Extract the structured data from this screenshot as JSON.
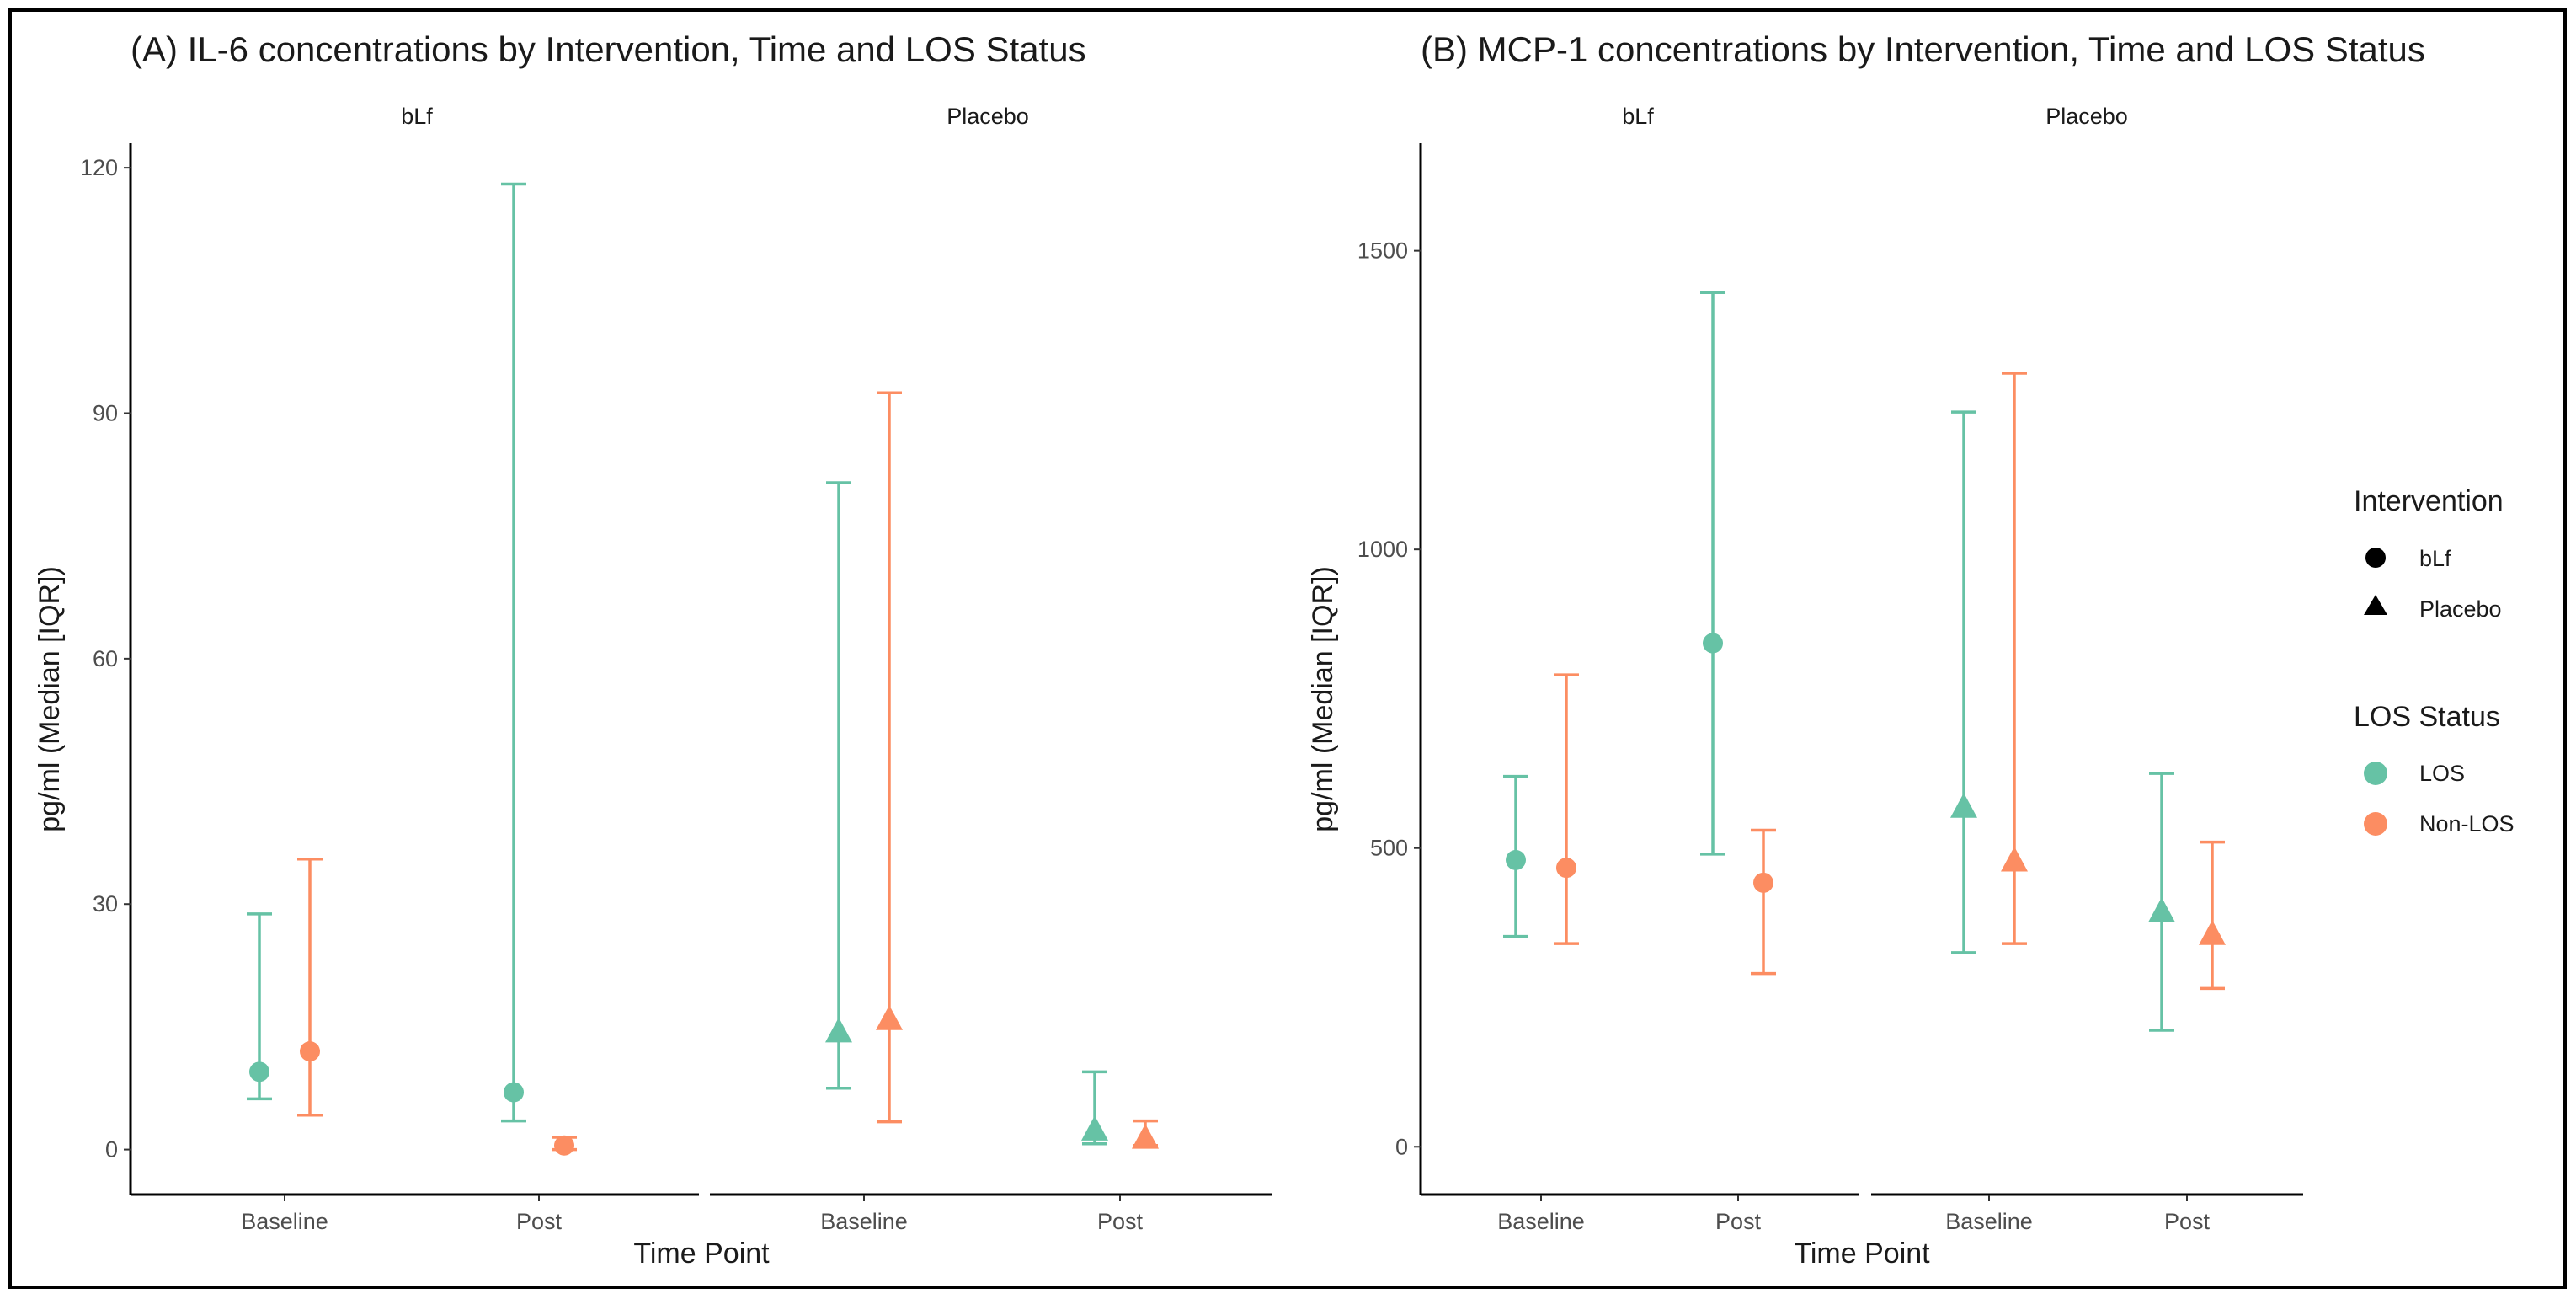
{
  "colors": {
    "LOS": "#66c2a5",
    "Non-LOS": "#fc8d62"
  },
  "legend": {
    "intervention_title": "Intervention",
    "intervention_items": [
      {
        "label": "bLf",
        "shape": "circle"
      },
      {
        "label": "Placebo",
        "shape": "triangle"
      }
    ],
    "los_title": "LOS Status",
    "los_items": [
      {
        "label": "LOS",
        "color": "#66c2a5"
      },
      {
        "label": "Non-LOS",
        "color": "#fc8d62"
      }
    ]
  },
  "chart_data": [
    {
      "type": "errorbar",
      "title": "(A) IL-6 concentrations by Intervention, Time and LOS Status",
      "xlabel": "Time Point",
      "ylabel": "pg/ml (Median [IQR])",
      "ylim": [
        -5.5,
        123
      ],
      "yticks": [
        0,
        30,
        60,
        90,
        120
      ],
      "facets": [
        "bLf",
        "Placebo"
      ],
      "categories": [
        "Baseline",
        "Post"
      ],
      "grid": false,
      "points": [
        {
          "facet": "bLf",
          "time": "Baseline",
          "group": "LOS",
          "median": 9.5,
          "q1": 6.2,
          "q3": 28.8
        },
        {
          "facet": "bLf",
          "time": "Baseline",
          "group": "Non-LOS",
          "median": 12.0,
          "q1": 4.2,
          "q3": 35.5
        },
        {
          "facet": "bLf",
          "time": "Post",
          "group": "LOS",
          "median": 7.0,
          "q1": 3.5,
          "q3": 118.0
        },
        {
          "facet": "bLf",
          "time": "Post",
          "group": "Non-LOS",
          "median": 0.5,
          "q1": 0.0,
          "q3": 1.5
        },
        {
          "facet": "Placebo",
          "time": "Baseline",
          "group": "LOS",
          "median": 14.5,
          "q1": 7.5,
          "q3": 81.5
        },
        {
          "facet": "Placebo",
          "time": "Baseline",
          "group": "Non-LOS",
          "median": 16.0,
          "q1": 3.4,
          "q3": 92.5
        },
        {
          "facet": "Placebo",
          "time": "Post",
          "group": "LOS",
          "median": 2.5,
          "q1": 0.7,
          "q3": 9.5
        },
        {
          "facet": "Placebo",
          "time": "Post",
          "group": "Non-LOS",
          "median": 1.5,
          "q1": 0.5,
          "q3": 3.5
        }
      ]
    },
    {
      "type": "errorbar",
      "title": "(B) MCP-1 concentrations by Intervention, Time and LOS Status",
      "xlabel": "Time Point",
      "ylabel": "pg/ml (Median [IQR])",
      "ylim": [
        -80,
        1680
      ],
      "yticks": [
        0,
        500,
        1000,
        1500
      ],
      "facets": [
        "bLf",
        "Placebo"
      ],
      "categories": [
        "Baseline",
        "Post"
      ],
      "grid": false,
      "points": [
        {
          "facet": "bLf",
          "time": "Baseline",
          "group": "LOS",
          "median": 480,
          "q1": 352,
          "q3": 620
        },
        {
          "facet": "bLf",
          "time": "Baseline",
          "group": "Non-LOS",
          "median": 467,
          "q1": 340,
          "q3": 790
        },
        {
          "facet": "bLf",
          "time": "Post",
          "group": "LOS",
          "median": 843,
          "q1": 490,
          "q3": 1430
        },
        {
          "facet": "bLf",
          "time": "Post",
          "group": "Non-LOS",
          "median": 442,
          "q1": 290,
          "q3": 530
        },
        {
          "facet": "Placebo",
          "time": "Baseline",
          "group": "LOS",
          "median": 570,
          "q1": 325,
          "q3": 1230
        },
        {
          "facet": "Placebo",
          "time": "Baseline",
          "group": "Non-LOS",
          "median": 480,
          "q1": 340,
          "q3": 1295
        },
        {
          "facet": "Placebo",
          "time": "Post",
          "group": "LOS",
          "median": 395,
          "q1": 195,
          "q3": 625
        },
        {
          "facet": "Placebo",
          "time": "Post",
          "group": "Non-LOS",
          "median": 357,
          "q1": 265,
          "q3": 510
        }
      ]
    }
  ]
}
